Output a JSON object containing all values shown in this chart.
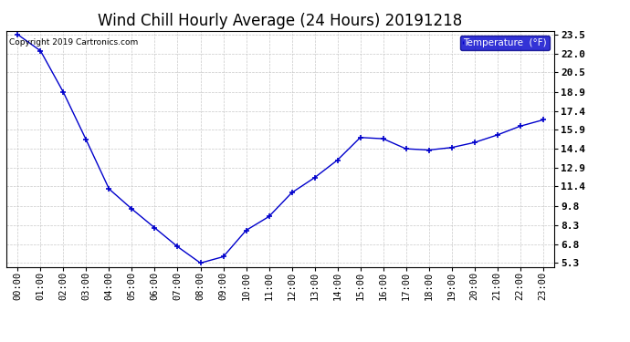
{
  "title": "Wind Chill Hourly Average (24 Hours) 20191218",
  "copyright": "Copyright 2019 Cartronics.com",
  "legend_label": "Temperature  (°F)",
  "hours": [
    "00:00",
    "01:00",
    "02:00",
    "03:00",
    "04:00",
    "05:00",
    "06:00",
    "07:00",
    "08:00",
    "09:00",
    "10:00",
    "11:00",
    "12:00",
    "13:00",
    "14:00",
    "15:00",
    "16:00",
    "17:00",
    "18:00",
    "19:00",
    "20:00",
    "21:00",
    "22:00",
    "23:00"
  ],
  "values": [
    23.5,
    22.2,
    18.9,
    15.1,
    11.2,
    9.6,
    8.1,
    6.6,
    5.3,
    5.8,
    7.9,
    9.0,
    10.9,
    12.1,
    13.5,
    15.3,
    15.2,
    14.4,
    14.3,
    14.5,
    14.9,
    15.5,
    16.2,
    16.7
  ],
  "yticks": [
    5.3,
    6.8,
    8.3,
    9.8,
    11.4,
    12.9,
    14.4,
    15.9,
    17.4,
    18.9,
    20.5,
    22.0,
    23.5
  ],
  "ymin": 5.0,
  "ymax": 23.8,
  "line_color": "#0000CC",
  "marker": "+",
  "marker_size": 5,
  "bg_color": "#ffffff",
  "plot_bg_color": "#ffffff",
  "grid_color": "#bbbbbb",
  "title_fontsize": 12,
  "tick_fontsize": 7.5,
  "legend_bg": "#0000CC",
  "legend_fg": "#ffffff"
}
